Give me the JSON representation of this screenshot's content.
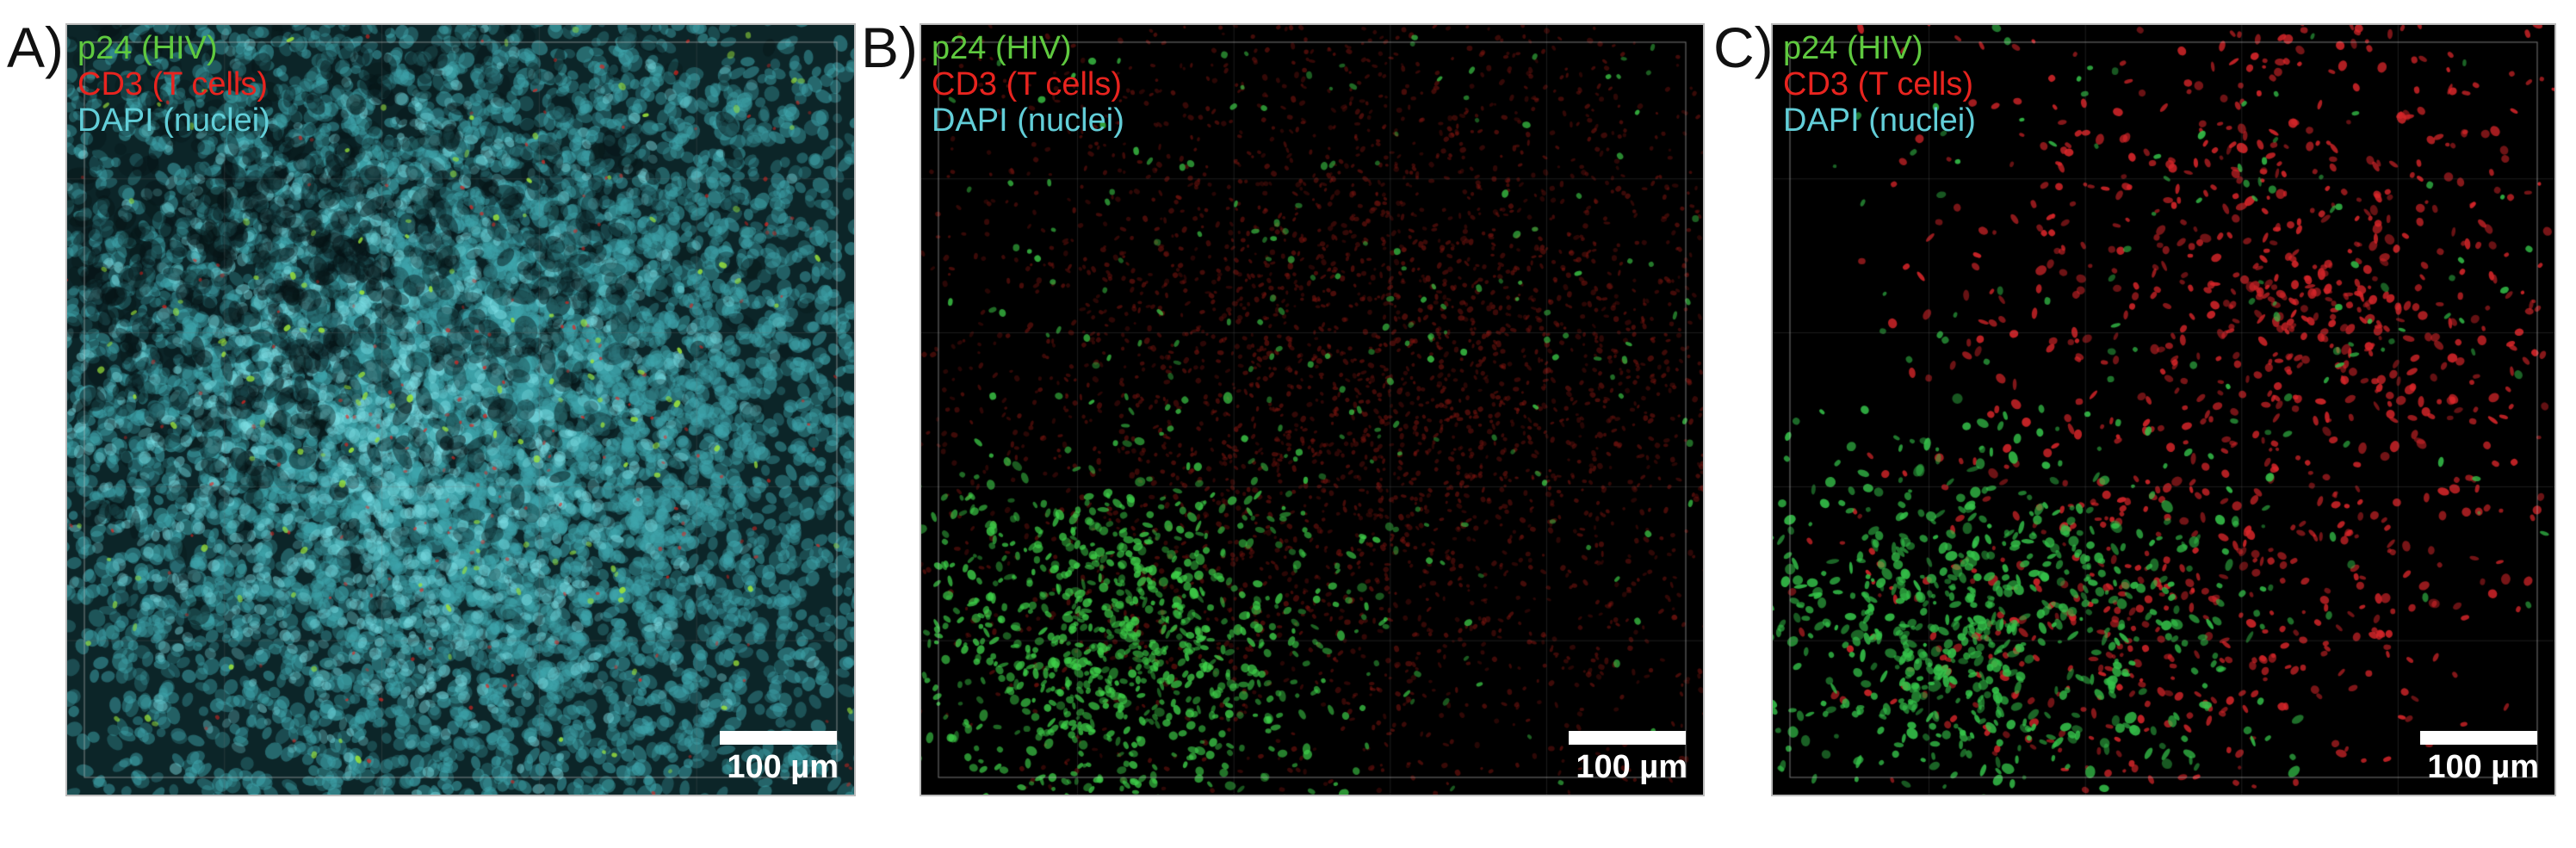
{
  "panels": [
    {
      "letter": "A)",
      "background": "dapi-dense"
    },
    {
      "letter": "B)",
      "background": "dark-speckle"
    },
    {
      "letter": "C)",
      "background": "dark-surfaces"
    }
  ],
  "legend": {
    "p24": {
      "label": "p24 (HIV)",
      "color": "#5fc93f"
    },
    "cd3": {
      "label": "CD3 (T cells)",
      "color": "#e8241f"
    },
    "dapi": {
      "label": "DAPI (nuclei)",
      "color": "#62ced8"
    }
  },
  "scale_bar": {
    "label": "100 µm"
  }
}
